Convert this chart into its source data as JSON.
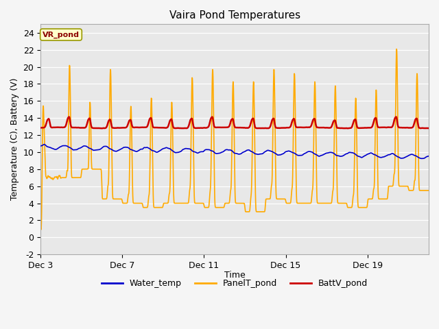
{
  "title": "Vaira Pond Temperatures",
  "xlabel": "Time",
  "ylabel": "Temperature (C), Battery (V)",
  "site_label": "VR_pond",
  "ylim": [
    -2,
    25
  ],
  "yticks": [
    -2,
    0,
    2,
    4,
    6,
    8,
    10,
    12,
    14,
    16,
    18,
    20,
    22,
    24
  ],
  "xlim": [
    0,
    19
  ],
  "x_tick_labels": [
    "Dec 3",
    "Dec 7",
    "Dec 11",
    "Dec 15",
    "Dec 19"
  ],
  "x_tick_positions": [
    0,
    4,
    8,
    12,
    16
  ],
  "colors": {
    "water_temp": "#0000cc",
    "panel_temp": "#ffaa00",
    "batt": "#cc0000",
    "plot_bg": "#e8e8e8",
    "grid": "#ffffff",
    "fig_bg": "#f5f5f5"
  },
  "legend_items": [
    "Water_temp",
    "PanelT_pond",
    "BattV_pond"
  ],
  "line_widths": {
    "water_temp": 1.2,
    "panel_temp": 1.2,
    "batt": 1.8
  },
  "figsize": [
    6.4,
    4.8
  ],
  "dpi": 100
}
